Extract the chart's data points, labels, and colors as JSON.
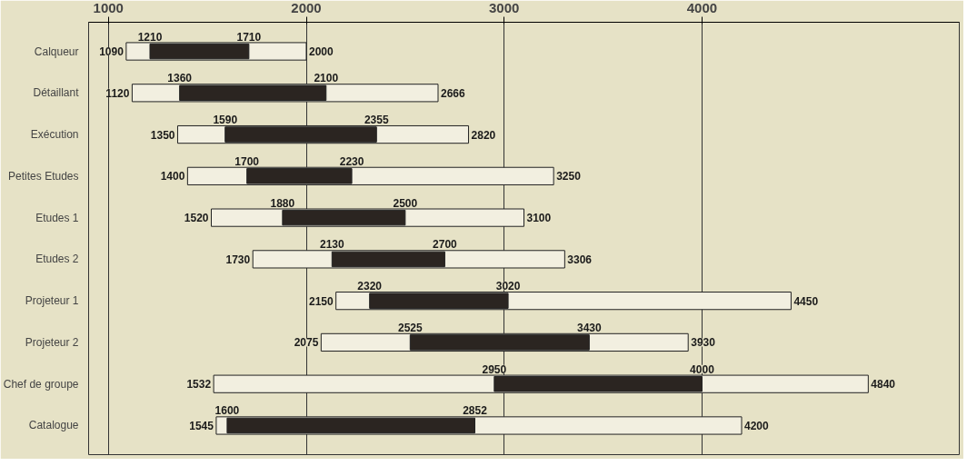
{
  "chart_data": {
    "type": "bar",
    "orientation": "horizontal",
    "categories": [
      "Calqueur",
      "Détaillant",
      "Exécution",
      "Petites Etudes",
      "Etudes 1",
      "Etudes 2",
      "Projeteur 1",
      "Projeteur 2",
      "Chef de groupe",
      "Catalogue"
    ],
    "series": [
      {
        "color": "#f2efe0",
        "base": [
          1090,
          1120,
          1350,
          1400,
          1520,
          1730,
          2150,
          2075,
          1532,
          1545
        ],
        "values": [
          910,
          1546,
          1470,
          1850,
          1580,
          1576,
          2300,
          1855,
          3308,
          2655
        ]
      },
      {
        "color": "#2b2521",
        "base": [
          1210,
          1360,
          1590,
          1700,
          1880,
          2130,
          2320,
          2525,
          2950,
          1600
        ],
        "values": [
          500,
          740,
          765,
          530,
          620,
          570,
          700,
          905,
          1050,
          1252
        ]
      }
    ],
    "annotations": [
      {
        "text": "1090",
        "x": 1090,
        "y": "Calqueur"
      },
      {
        "text": "2000",
        "x": 2000,
        "y": "Calqueur"
      },
      {
        "text": "1210",
        "x": 1210,
        "y": "Calqueur"
      },
      {
        "text": "1710",
        "x": 1710,
        "y": "Calqueur"
      },
      {
        "text": "1120",
        "x": 1120,
        "y": "Détaillant"
      },
      {
        "text": "2666",
        "x": 2666,
        "y": "Détaillant"
      },
      {
        "text": "1360",
        "x": 1360,
        "y": "Détaillant"
      },
      {
        "text": "2100",
        "x": 2100,
        "y": "Détaillant"
      },
      {
        "text": "1350",
        "x": 1350,
        "y": "Exécution"
      },
      {
        "text": "2820",
        "x": 2820,
        "y": "Exécution"
      },
      {
        "text": "1590",
        "x": 1590,
        "y": "Exécution"
      },
      {
        "text": "2355",
        "x": 2355,
        "y": "Exécution"
      },
      {
        "text": "1400",
        "x": 1400,
        "y": "Petites Etudes"
      },
      {
        "text": "3250",
        "x": 3250,
        "y": "Petites Etudes"
      },
      {
        "text": "1700",
        "x": 1700,
        "y": "Petites Etudes"
      },
      {
        "text": "2230",
        "x": 2230,
        "y": "Petites Etudes"
      },
      {
        "text": "1520",
        "x": 1520,
        "y": "Etudes 1"
      },
      {
        "text": "3100",
        "x": 3100,
        "y": "Etudes 1"
      },
      {
        "text": "1880",
        "x": 1880,
        "y": "Etudes 1"
      },
      {
        "text": "2500",
        "x": 2500,
        "y": "Etudes 1"
      },
      {
        "text": "1730",
        "x": 1730,
        "y": "Etudes 2"
      },
      {
        "text": "3306",
        "x": 3306,
        "y": "Etudes 2"
      },
      {
        "text": "2130",
        "x": 2130,
        "y": "Etudes 2"
      },
      {
        "text": "2700",
        "x": 2700,
        "y": "Etudes 2"
      },
      {
        "text": "2150",
        "x": 2150,
        "y": "Projeteur 1"
      },
      {
        "text": "4450",
        "x": 4450,
        "y": "Projeteur 1"
      },
      {
        "text": "2320",
        "x": 2320,
        "y": "Projeteur 1"
      },
      {
        "text": "3020",
        "x": 3020,
        "y": "Projeteur 1"
      },
      {
        "text": "2075",
        "x": 2075,
        "y": "Projeteur 2"
      },
      {
        "text": "3930",
        "x": 3930,
        "y": "Projeteur 2"
      },
      {
        "text": "2525",
        "x": 2525,
        "y": "Projeteur 2"
      },
      {
        "text": "3430",
        "x": 3430,
        "y": "Projeteur 2"
      },
      {
        "text": "1532",
        "x": 1532,
        "y": "Chef de groupe"
      },
      {
        "text": "4840",
        "x": 4840,
        "y": "Chef de groupe"
      },
      {
        "text": "2950",
        "x": 2950,
        "y": "Chef de groupe"
      },
      {
        "text": "4000",
        "x": 4000,
        "y": "Chef de groupe"
      },
      {
        "text": "1545",
        "x": 1545,
        "y": "Catalogue"
      },
      {
        "text": "4200",
        "x": 4200,
        "y": "Catalogue"
      },
      {
        "text": "1600",
        "x": 1600,
        "y": "Catalogue"
      },
      {
        "text": "2852",
        "x": 2852,
        "y": "Catalogue"
      }
    ],
    "xlim": [
      900,
      5300
    ],
    "xticks": [
      1000,
      2000,
      3000,
      4000
    ],
    "grid": "x"
  }
}
